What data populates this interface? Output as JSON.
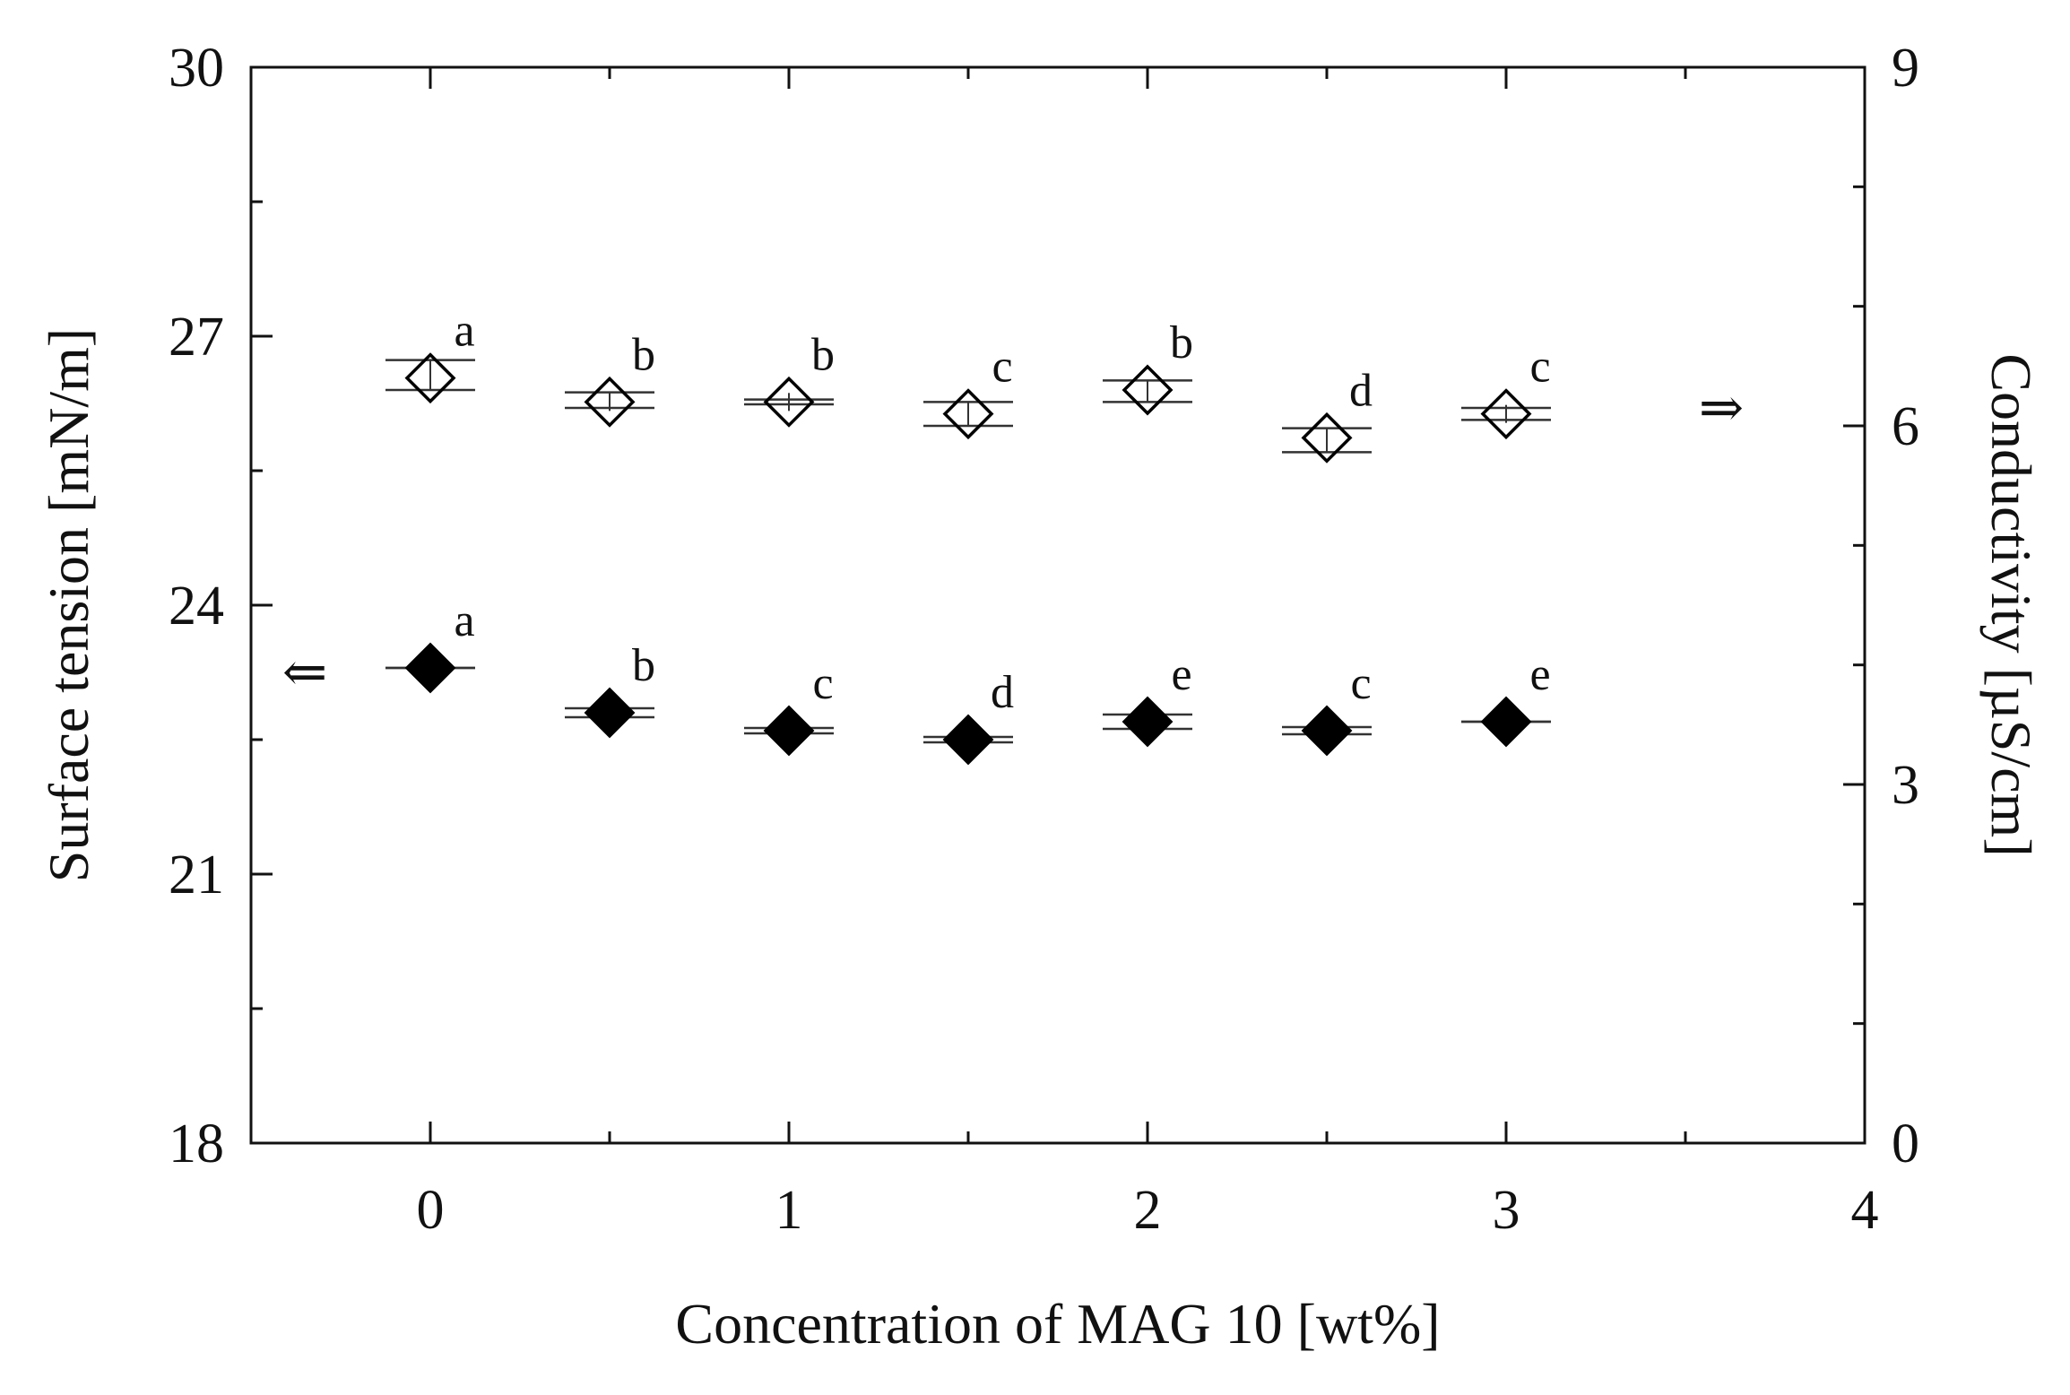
{
  "chart_data": {
    "type": "scatter",
    "xlabel": "Concentration of MAG 10 [wt%]",
    "ylabel_left": "Surface tension [mN/m]",
    "ylabel_right": "Conductivity [µS/cm]",
    "xlim": [
      -0.5,
      4
    ],
    "ylim_left": [
      18,
      30
    ],
    "ylim_right": [
      0,
      9
    ],
    "x_ticks": [
      0,
      1,
      2,
      3,
      4
    ],
    "x_tick_labels": [
      "0",
      "1",
      "2",
      "3",
      "4"
    ],
    "y_left_ticks": [
      18,
      21,
      24,
      27,
      30
    ],
    "y_left_tick_labels": [
      "18",
      "21",
      "24",
      "27",
      "30"
    ],
    "y_right_ticks": [
      0,
      3,
      6,
      9
    ],
    "y_right_tick_labels": [
      "0",
      "3",
      "6",
      "9"
    ],
    "grid": false,
    "legend": "none",
    "series": [
      {
        "axis": "right",
        "marker": "diamond-open",
        "indicator_arrow": "⇒",
        "x": [
          0,
          0.5,
          1,
          1.5,
          2,
          2.5,
          3
        ],
        "y": [
          6.4,
          6.2,
          6.2,
          6.1,
          6.3,
          5.9,
          6.1
        ],
        "err_low": [
          6.3,
          6.15,
          6.18,
          6.0,
          6.2,
          5.78,
          6.05
        ],
        "err_high": [
          6.55,
          6.28,
          6.22,
          6.2,
          6.38,
          5.98,
          6.15
        ],
        "labels": [
          "a",
          "b",
          "b",
          "c",
          "b",
          "d",
          "c"
        ]
      },
      {
        "axis": "left",
        "marker": "diamond-filled",
        "indicator_arrow": "⇐",
        "x": [
          0,
          0.5,
          1,
          1.5,
          2,
          2.5,
          3
        ],
        "y": [
          23.3,
          22.8,
          22.6,
          22.5,
          22.7,
          22.6,
          22.7
        ],
        "err_low": [
          23.3,
          22.75,
          22.57,
          22.47,
          22.62,
          22.56,
          22.7
        ],
        "err_high": [
          23.3,
          22.85,
          22.63,
          22.53,
          22.78,
          22.64,
          22.7
        ],
        "labels": [
          "a",
          "b",
          "c",
          "d",
          "e",
          "c",
          "e"
        ]
      }
    ]
  }
}
